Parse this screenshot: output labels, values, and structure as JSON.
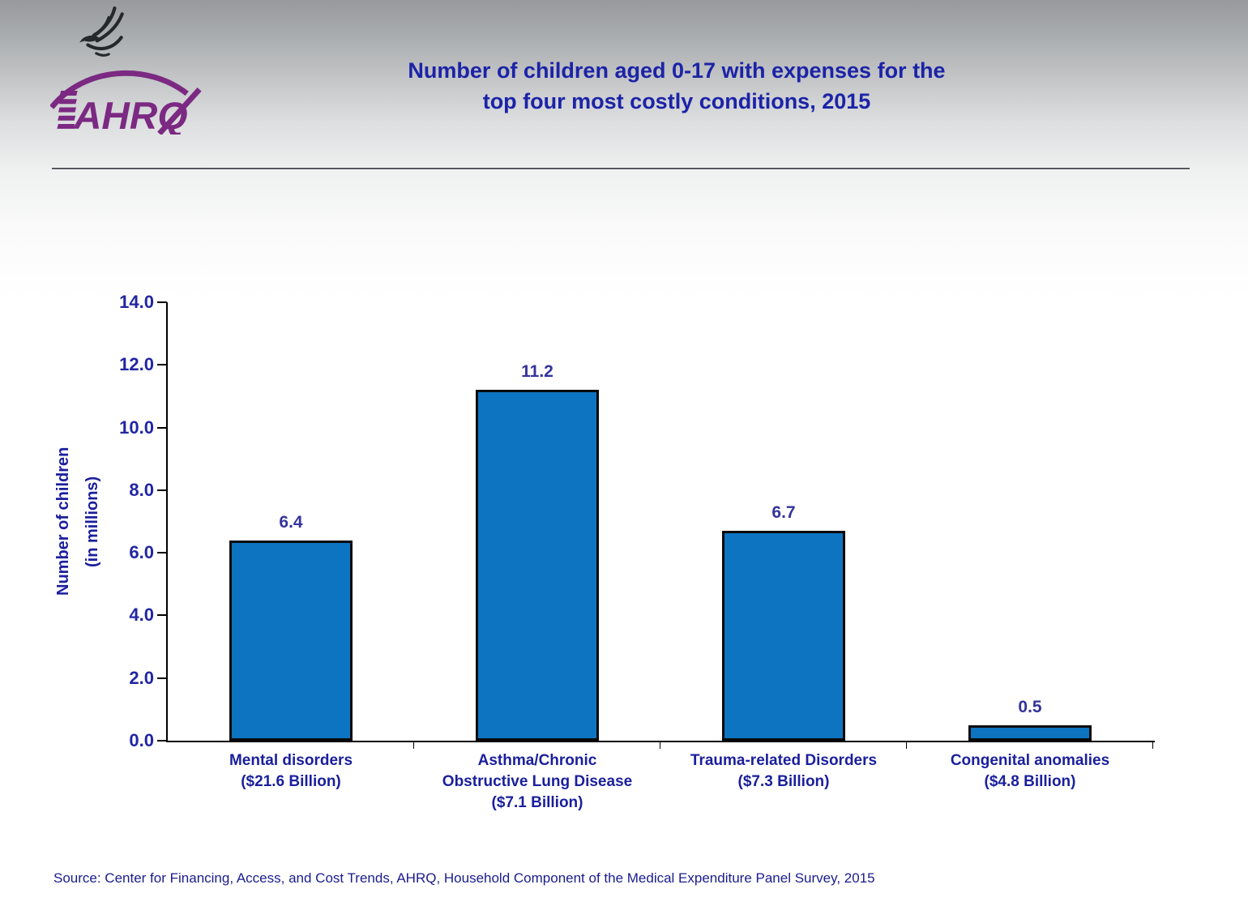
{
  "header": {
    "logo": {
      "org_abbr": "AHRQ",
      "brand_color": "#7b2982"
    },
    "title_line1": "Number of children aged 0-17 with expenses for the",
    "title_line2": "top four most costly conditions, 2015"
  },
  "chart_data": {
    "type": "bar",
    "title": "Number of children aged 0-17 with expenses for the top four most costly conditions, 2015",
    "categories": [
      {
        "lines": [
          "Mental disorders",
          "($21.6 Billion)"
        ]
      },
      {
        "lines": [
          "Asthma/Chronic",
          "Obstructive Lung Disease",
          "($7.1 Billion)"
        ]
      },
      {
        "lines": [
          "Trauma-related Disorders",
          "($7.3 Billion)"
        ]
      },
      {
        "lines": [
          "Congenital anomalies",
          "($4.8 Billion)"
        ]
      }
    ],
    "values": [
      6.4,
      11.2,
      6.7,
      0.5
    ],
    "value_labels": [
      "6.4",
      "11.2",
      "6.7",
      "0.5"
    ],
    "ylabel_line1": "Number of children",
    "ylabel_line2": "(in millions)",
    "xlabel": "",
    "ylim": [
      0,
      14
    ],
    "ytick_step": 2,
    "yticks": [
      "14.0",
      "12.0",
      "10.0",
      "8.0",
      "6.0",
      "4.0",
      "2.0",
      "0.0"
    ],
    "bar_color": "#0d74c2",
    "bar_border_color": "#0a0a0a",
    "grid": false,
    "legend_position": "none"
  },
  "footer": {
    "source": "Source: Center for Financing, Access, and Cost Trends, AHRQ, Household Component of the Medical Expenditure Panel Survey, 2015"
  }
}
